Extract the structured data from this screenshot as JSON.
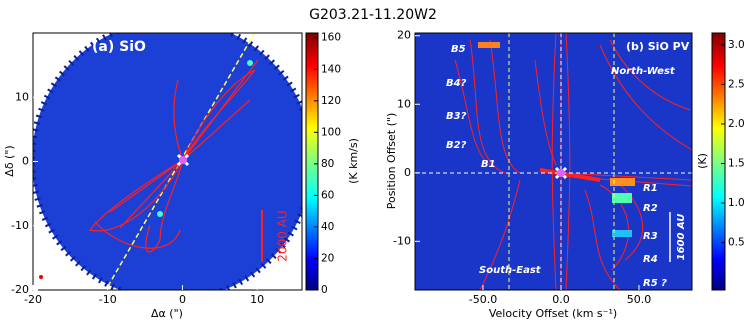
{
  "title": "G203.21-11.20W2",
  "chart_data": [
    {
      "type": "map",
      "panel_label": "(a) SiO",
      "scale_label": "2000 AU",
      "x_label": "Δα (\")",
      "y_label": "Δδ (\")",
      "xlim": [
        -20,
        16
      ],
      "ylim": [
        -20,
        20
      ],
      "xticks": [
        -20,
        -10,
        0,
        10
      ],
      "yticks": [
        -20,
        -10,
        0,
        10
      ],
      "colorbar_label": "(K km/s)",
      "clim": [
        0,
        163
      ],
      "cticks": [
        0,
        20,
        40,
        60,
        80,
        100,
        120,
        140,
        160
      ]
    },
    {
      "type": "pv",
      "panel_label": "(b) SiO PV",
      "scale_label": "1600 AU",
      "x_label": "Velocity Offset (km s⁻¹)",
      "y_label": "Position Offset (\")",
      "xlim": [
        -93.6,
        84
      ],
      "ylim": [
        -17.1,
        20.4
      ],
      "xticks": [
        {
          "value": -50,
          "label": "-50.0"
        },
        {
          "value": 0,
          "label": "0.0"
        },
        {
          "value": 50,
          "label": "50.0"
        }
      ],
      "yticks": [
        -10,
        0,
        10,
        20
      ],
      "colorbar_label": "(K)",
      "clim": [
        -0.1,
        3.15
      ],
      "cticks": [
        0.5,
        {
          "value": 1,
          "label": "1.0"
        },
        1.5,
        {
          "value": 2,
          "label": "2.0"
        },
        2.5,
        {
          "value": 3,
          "label": "3.0"
        }
      ],
      "annotations": [
        "B5",
        "B4?",
        "B3?",
        "B2?",
        "B1",
        "R1",
        "R2",
        "R3",
        "R4",
        "R5 ?",
        "South-East",
        "North-West"
      ]
    }
  ]
}
